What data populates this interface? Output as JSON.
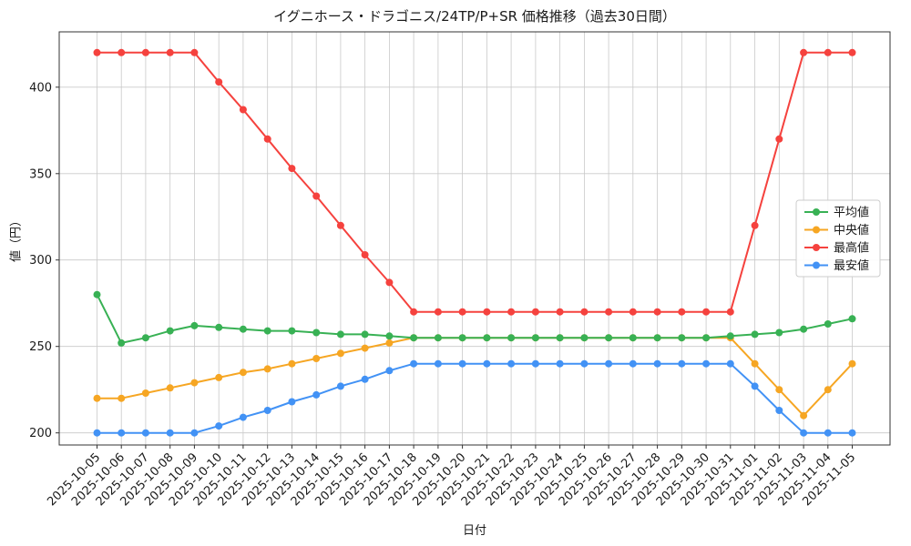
{
  "chart_data": {
    "type": "line",
    "title": "イグニホース・ドラゴニス/24TP/P+SR 価格推移（過去30日間）",
    "xlabel": "日付",
    "ylabel": "値（円）",
    "grid": true,
    "legend_position": "center-right",
    "yticks": [
      200,
      250,
      300,
      350,
      400
    ],
    "ylim": [
      193,
      432
    ],
    "categories": [
      "2025-10-05",
      "2025-10-06",
      "2025-10-07",
      "2025-10-08",
      "2025-10-09",
      "2025-10-10",
      "2025-10-11",
      "2025-10-12",
      "2025-10-13",
      "2025-10-14",
      "2025-10-15",
      "2025-10-16",
      "2025-10-17",
      "2025-10-18",
      "2025-10-19",
      "2025-10-20",
      "2025-10-21",
      "2025-10-22",
      "2025-10-23",
      "2025-10-24",
      "2025-10-25",
      "2025-10-26",
      "2025-10-27",
      "2025-10-28",
      "2025-10-29",
      "2025-10-30",
      "2025-10-31",
      "2025-11-01",
      "2025-11-02",
      "2025-11-03",
      "2025-11-04",
      "2025-11-05"
    ],
    "series": [
      {
        "key": "average",
        "name": "平均値",
        "color": "#38b154",
        "values": [
          280,
          252,
          255,
          259,
          262,
          261,
          260,
          259,
          259,
          258,
          257,
          257,
          256,
          255,
          255,
          255,
          255,
          255,
          255,
          255,
          255,
          255,
          255,
          255,
          255,
          255,
          256,
          257,
          258,
          260,
          263,
          266
        ]
      },
      {
        "key": "median",
        "name": "中央値",
        "color": "#f6a623",
        "values": [
          220,
          220,
          223,
          226,
          229,
          232,
          235,
          237,
          240,
          243,
          246,
          249,
          252,
          255,
          255,
          255,
          255,
          255,
          255,
          255,
          255,
          255,
          255,
          255,
          255,
          255,
          255,
          240,
          225,
          210,
          225,
          240
        ]
      },
      {
        "key": "max",
        "name": "最高値",
        "color": "#f5423e",
        "values": [
          420,
          420,
          420,
          420,
          420,
          403,
          387,
          370,
          353,
          337,
          320,
          303,
          287,
          270,
          270,
          270,
          270,
          270,
          270,
          270,
          270,
          270,
          270,
          270,
          270,
          270,
          270,
          320,
          370,
          420,
          420,
          420
        ]
      },
      {
        "key": "min",
        "name": "最安値",
        "color": "#4292f5",
        "values": [
          200,
          200,
          200,
          200,
          200,
          204,
          209,
          213,
          218,
          222,
          227,
          231,
          236,
          240,
          240,
          240,
          240,
          240,
          240,
          240,
          240,
          240,
          240,
          240,
          240,
          240,
          240,
          227,
          213,
          200,
          200,
          200
        ]
      }
    ],
    "colors": {
      "grid": "#c9c9c9",
      "axis": "#333333",
      "text": "#1a1a1a",
      "legend_border": "#cccccc"
    }
  }
}
